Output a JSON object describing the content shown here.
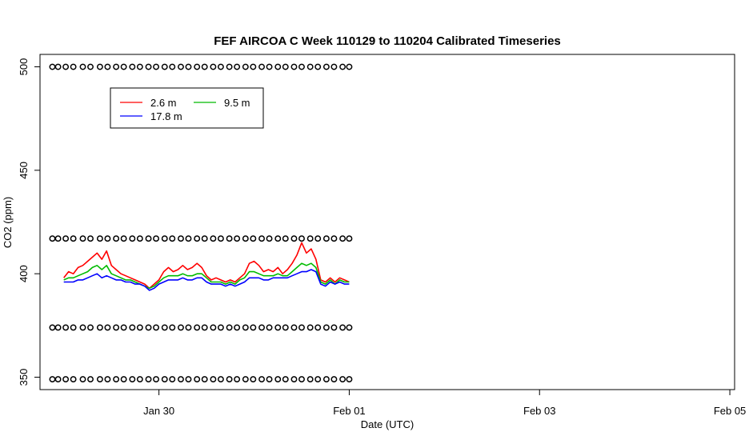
{
  "chart_data": {
    "type": "line",
    "title": "FEF AIRCOA C  Week 110129 to 110204  Calibrated Timeseries",
    "xlabel": "Date (UTC)",
    "ylabel": "CO2 (ppm)",
    "x_ticks": [
      {
        "day": 1.0,
        "label": "Jan 30"
      },
      {
        "day": 3.0,
        "label": "Feb 01"
      },
      {
        "day": 5.0,
        "label": "Feb 03"
      },
      {
        "day": 7.0,
        "label": "Feb 05"
      }
    ],
    "y_ticks": [
      350,
      400,
      450,
      500
    ],
    "xlim": [
      -0.25,
      7.05
    ],
    "ylim": [
      344,
      506
    ],
    "grid": false,
    "legend_position": "top-left",
    "legend_order": [
      0,
      2,
      1
    ],
    "series": [
      {
        "name": "2.6 m",
        "color": "#ff0000",
        "x": [
          0.0,
          0.05,
          0.1,
          0.15,
          0.2,
          0.25,
          0.3,
          0.35,
          0.4,
          0.45,
          0.5,
          0.55,
          0.6,
          0.65,
          0.7,
          0.75,
          0.8,
          0.85,
          0.9,
          0.95,
          1.0,
          1.05,
          1.1,
          1.15,
          1.2,
          1.25,
          1.3,
          1.35,
          1.4,
          1.45,
          1.5,
          1.55,
          1.6,
          1.65,
          1.7,
          1.75,
          1.8,
          1.85,
          1.9,
          1.95,
          2.0,
          2.05,
          2.1,
          2.15,
          2.2,
          2.25,
          2.3,
          2.35,
          2.4,
          2.45,
          2.5,
          2.55,
          2.6,
          2.65,
          2.7,
          2.75,
          2.8,
          2.85,
          2.9,
          2.95,
          3.0
        ],
        "y": [
          398,
          401,
          400,
          403,
          404,
          406,
          408,
          410,
          407,
          411,
          404,
          402,
          400,
          399,
          398,
          397,
          396,
          395,
          393,
          395,
          397,
          401,
          403,
          401,
          402,
          404,
          402,
          403,
          405,
          403,
          399,
          397,
          398,
          397,
          396,
          397,
          396,
          398,
          400,
          405,
          406,
          404,
          401,
          402,
          401,
          403,
          400,
          402,
          405,
          409,
          415,
          410,
          412,
          407,
          397,
          396,
          398,
          396,
          398,
          397,
          396
        ]
      },
      {
        "name": "9.5 m",
        "color": "#00bb00",
        "x": [
          0.0,
          0.05,
          0.1,
          0.15,
          0.2,
          0.25,
          0.3,
          0.35,
          0.4,
          0.45,
          0.5,
          0.55,
          0.6,
          0.65,
          0.7,
          0.75,
          0.8,
          0.85,
          0.9,
          0.95,
          1.0,
          1.05,
          1.1,
          1.15,
          1.2,
          1.25,
          1.3,
          1.35,
          1.4,
          1.45,
          1.5,
          1.55,
          1.6,
          1.65,
          1.7,
          1.75,
          1.8,
          1.85,
          1.9,
          1.95,
          2.0,
          2.05,
          2.1,
          2.15,
          2.2,
          2.25,
          2.3,
          2.35,
          2.4,
          2.45,
          2.5,
          2.55,
          2.6,
          2.65,
          2.7,
          2.75,
          2.8,
          2.85,
          2.9,
          2.95,
          3.0
        ],
        "y": [
          397,
          398,
          398,
          399,
          400,
          401,
          403,
          404,
          402,
          404,
          400,
          399,
          398,
          397,
          397,
          396,
          395,
          394,
          393,
          394,
          396,
          398,
          399,
          399,
          399,
          400,
          399,
          399,
          400,
          400,
          398,
          396,
          396,
          396,
          395,
          396,
          395,
          397,
          398,
          401,
          401,
          400,
          399,
          399,
          399,
          400,
          399,
          399,
          401,
          403,
          405,
          404,
          405,
          403,
          396,
          395,
          397,
          395,
          397,
          396,
          396
        ]
      },
      {
        "name": "17.8 m",
        "color": "#0000ff",
        "x": [
          0.0,
          0.05,
          0.1,
          0.15,
          0.2,
          0.25,
          0.3,
          0.35,
          0.4,
          0.45,
          0.5,
          0.55,
          0.6,
          0.65,
          0.7,
          0.75,
          0.8,
          0.85,
          0.9,
          0.95,
          1.0,
          1.05,
          1.1,
          1.15,
          1.2,
          1.25,
          1.3,
          1.35,
          1.4,
          1.45,
          1.5,
          1.55,
          1.6,
          1.65,
          1.7,
          1.75,
          1.8,
          1.85,
          1.9,
          1.95,
          2.0,
          2.05,
          2.1,
          2.15,
          2.2,
          2.25,
          2.3,
          2.35,
          2.4,
          2.45,
          2.5,
          2.55,
          2.6,
          2.65,
          2.7,
          2.75,
          2.8,
          2.85,
          2.9,
          2.95,
          3.0
        ],
        "y": [
          396,
          396,
          396,
          397,
          397,
          398,
          399,
          400,
          398,
          399,
          398,
          397,
          397,
          396,
          396,
          395,
          395,
          394,
          392,
          393,
          395,
          396,
          397,
          397,
          397,
          398,
          397,
          397,
          398,
          398,
          396,
          395,
          395,
          395,
          394,
          395,
          394,
          395,
          396,
          398,
          398,
          398,
          397,
          397,
          398,
          398,
          398,
          398,
          399,
          400,
          401,
          401,
          402,
          401,
          395,
          394,
          396,
          395,
          396,
          395,
          395
        ]
      }
    ],
    "markers": {
      "symbol": "o",
      "levels": [
        500,
        417,
        374,
        349
      ],
      "x": [
        -0.12,
        -0.06,
        0.02,
        0.1,
        0.2,
        0.28,
        0.38,
        0.46,
        0.55,
        0.63,
        0.72,
        0.8,
        0.89,
        0.97,
        1.06,
        1.14,
        1.23,
        1.31,
        1.4,
        1.48,
        1.57,
        1.65,
        1.74,
        1.82,
        1.91,
        1.99,
        2.08,
        2.16,
        2.25,
        2.33,
        2.42,
        2.5,
        2.59,
        2.67,
        2.76,
        2.84,
        2.93,
        3.0
      ]
    }
  }
}
